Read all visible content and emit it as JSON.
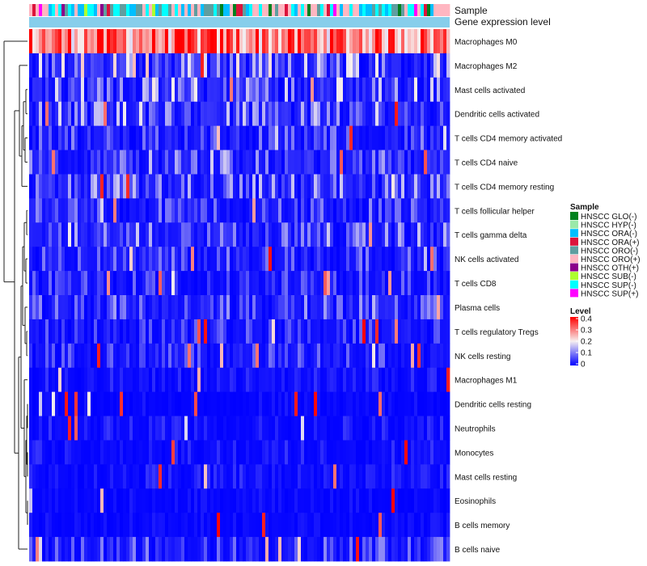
{
  "chart_data": {
    "type": "heatmap",
    "title": "",
    "annotation_tracks": [
      "Sample",
      "Gene expression level"
    ],
    "rows": [
      "Macrophages M0",
      "Macrophages M2",
      "Mast cells activated",
      "Dendritic cells activated",
      "T cells CD4 memory activated",
      "T cells CD4 naive",
      "T cells CD4 memory resting",
      "T cells follicular helper",
      "T cells gamma delta",
      "NK cells activated",
      "T cells CD8",
      "Plasma cells",
      "T cells regulatory  Tregs",
      "NK cells resting",
      "Macrophages M1",
      "Dendritic cells resting",
      "Neutrophils",
      "Monocytes",
      "Mast cells resting",
      "Eosinophils",
      "B cells memory",
      "B cells naive"
    ],
    "n_samples": 130,
    "row_mean_levels": [
      0.3,
      0.1,
      0.09,
      0.08,
      0.05,
      0.06,
      0.07,
      0.05,
      0.07,
      0.05,
      0.04,
      0.06,
      0.04,
      0.04,
      0.02,
      0.01,
      0.02,
      0.02,
      0.02,
      0.01,
      0.01,
      0.05
    ],
    "color_scale": {
      "min": 0,
      "max": 0.4,
      "stops": [
        {
          "v": 0,
          "c": "#0000ff"
        },
        {
          "v": 0.2,
          "c": "#f7f0f0"
        },
        {
          "v": 0.4,
          "c": "#ff0000"
        }
      ]
    },
    "sample_groups": [
      {
        "name": "HNSCC GLO(-)",
        "color": "#00821e"
      },
      {
        "name": "HNSCC HYP(-)",
        "color": "#9ae9a9"
      },
      {
        "name": "HNSCC ORA(-)",
        "color": "#00bfff"
      },
      {
        "name": "HNSCC ORA(+)",
        "color": "#dc143c"
      },
      {
        "name": "HNSCC ORO(-)",
        "color": "#5f9ea0"
      },
      {
        "name": "HNSCC ORO(+)",
        "color": "#ffb6c1"
      },
      {
        "name": "HNSCC OTH(+)",
        "color": "#8b008b"
      },
      {
        "name": "HNSCC SUB(-)",
        "color": "#adff2f"
      },
      {
        "name": "HNSCC SUP(-)",
        "color": "#00ffff"
      },
      {
        "name": "HNSCC SUP(+)",
        "color": "#ff00ff"
      }
    ],
    "gene_expression_track_color": "#87ceeb",
    "legend": {
      "sample_title": "Sample",
      "level_title": "Level",
      "level_ticks": [
        "0.4",
        "0.3",
        "0.2",
        "0.1",
        "0"
      ],
      "placement": "right"
    }
  }
}
